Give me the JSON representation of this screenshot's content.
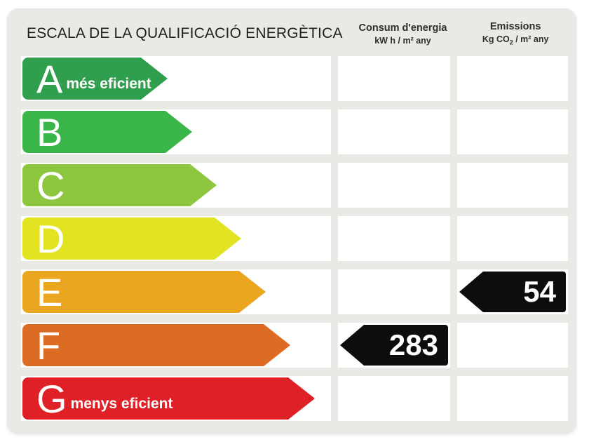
{
  "title": "ESCALA DE LA QUALIFICACIÓ ENERGÈTICA",
  "columns": {
    "consum": {
      "title": "Consum d'energia",
      "unit": "kW h / m² any"
    },
    "emissions": {
      "title": "Emissions",
      "unit_prefix": "Kg CO",
      "unit_sub": "2",
      "unit_suffix": " / m² any"
    }
  },
  "colors": {
    "card_bg": "#e9e9e6",
    "cell_bg": "#ffffff",
    "value_arrow_bg": "#0d0d0d",
    "value_text": "#ffffff"
  },
  "chart_data": {
    "type": "bar",
    "title": "ESCALA DE LA QUALIFICACIÓ ENERGÈTICA",
    "categories": [
      "A",
      "B",
      "C",
      "D",
      "E",
      "F",
      "G"
    ],
    "series": [
      {
        "name": "Consum d'energia (kW h / m² any)",
        "values": [
          null,
          null,
          null,
          null,
          null,
          283,
          null
        ]
      },
      {
        "name": "Emissions (Kg CO2 / m² any)",
        "values": [
          null,
          null,
          null,
          null,
          54,
          null,
          null
        ]
      }
    ],
    "annotations": [
      "A = més eficient",
      "G = menys eficient"
    ],
    "legend_position": "top",
    "grid": false
  },
  "rows": [
    {
      "letter": "A",
      "label": "més eficient",
      "color": "#2f9e4d",
      "consum": "",
      "emissions": ""
    },
    {
      "letter": "B",
      "label": "",
      "color": "#3ab54a",
      "consum": "",
      "emissions": ""
    },
    {
      "letter": "C",
      "label": "",
      "color": "#8dc63f",
      "consum": "",
      "emissions": ""
    },
    {
      "letter": "D",
      "label": "",
      "color": "#e2e321",
      "consum": "",
      "emissions": ""
    },
    {
      "letter": "E",
      "label": "",
      "color": "#eaa621",
      "consum": "",
      "emissions": "54"
    },
    {
      "letter": "F",
      "label": "",
      "color": "#dc6b24",
      "consum": "283",
      "emissions": ""
    },
    {
      "letter": "G",
      "label": "menys eficient",
      "color": "#e02027",
      "consum": "",
      "emissions": ""
    }
  ]
}
